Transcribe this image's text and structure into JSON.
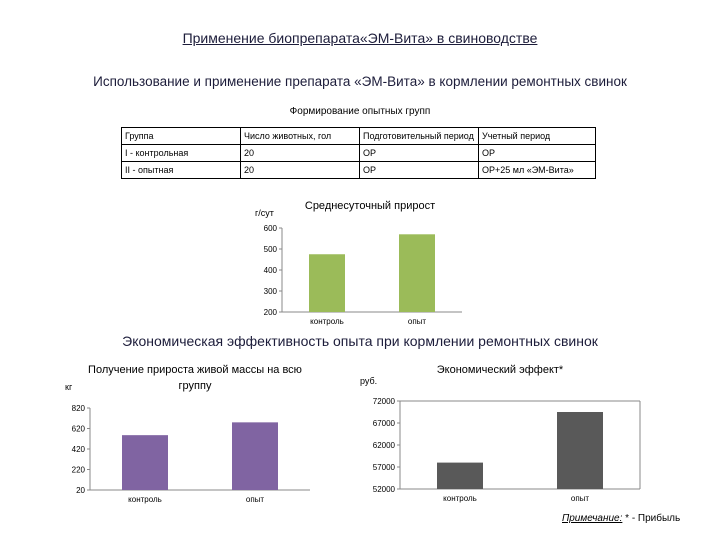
{
  "title": "Применение биопрепарата«ЭМ-Вита» в свиноводстве",
  "subtitle": "Использование и применение препарата «ЭМ-Вита» в кормлении ремонтных свинок",
  "table_caption": "Формирование опытных групп",
  "table": {
    "headers": [
      "Группа",
      "Число животных, гол",
      "Подготовительный период",
      "Учетный период"
    ],
    "rows": [
      [
        "I - контрольная",
        "20",
        "ОР",
        "ОР"
      ],
      [
        "II - опытная",
        "20",
        "ОР",
        "ОР+25 мл «ЭМ-Вита»"
      ]
    ]
  },
  "section_heading": "Экономическая эффективность опыта при кормлении ремонтных свинок",
  "footnote": {
    "label": "Примечание:",
    "text": " * - Прибыль"
  },
  "colors": {
    "purple": "#8064a2",
    "green": "#9bbb59",
    "gray": "#595959"
  },
  "chart_data": [
    {
      "type": "bar",
      "title": "Среднесуточный прирост",
      "ylabel": "г/сут",
      "categories": [
        "контроль",
        "опыт"
      ],
      "values": [
        475,
        570
      ],
      "ylim": [
        200,
        600
      ],
      "ticks": [
        "600",
        "500",
        "400",
        "300",
        "200"
      ],
      "color": "#9bbb59"
    },
    {
      "type": "bar",
      "title": "Получение прироста живой массы на всю группу",
      "ylabel": "кг",
      "categories": [
        "контроль",
        "опыт"
      ],
      "values": [
        555,
        680
      ],
      "ylim": [
        20,
        820
      ],
      "ticks": [
        "820",
        "620",
        "420",
        "220",
        "20"
      ],
      "color": "#8064a2"
    },
    {
      "type": "bar",
      "title": "Экономический эффект*",
      "ylabel": "руб.",
      "categories": [
        "контроль",
        "опыт"
      ],
      "values": [
        58000,
        69500
      ],
      "ylim": [
        52000,
        72000
      ],
      "ticks": [
        "72000",
        "67000",
        "62000",
        "57000",
        "52000"
      ],
      "color": "#595959"
    }
  ]
}
